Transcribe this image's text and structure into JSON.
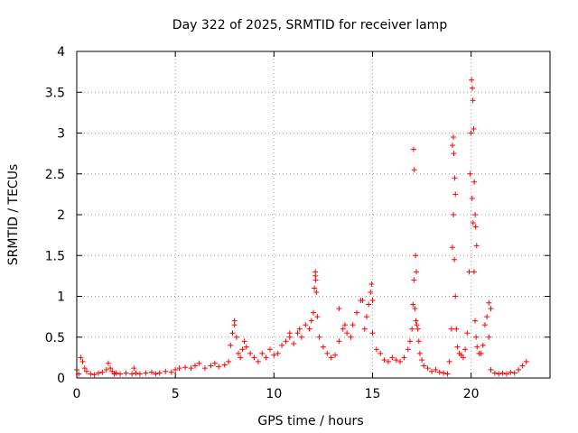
{
  "chart_data": {
    "type": "scatter",
    "title": "Day 322 of 2025, SRMTID for receiver lamp",
    "xlabel": "GPS time / hours",
    "ylabel": "SRMTID / TECUs",
    "xlim": [
      0,
      24
    ],
    "ylim": [
      0,
      4
    ],
    "xticks": [
      0,
      5,
      10,
      15,
      20
    ],
    "yticks": [
      0,
      0.5,
      1,
      1.5,
      2,
      2.5,
      3,
      3.5,
      4
    ],
    "ytick_labels": [
      "0",
      "0.5",
      "1",
      "1.5",
      "2",
      "2.5",
      "3",
      "3.5",
      "4"
    ],
    "grid": true,
    "marker": "+",
    "color": "#ff0000",
    "series": [
      {
        "name": "SRMTID",
        "x": [
          0.0,
          0.1,
          0.2,
          0.3,
          0.4,
          0.5,
          0.7,
          0.9,
          1.1,
          1.3,
          1.5,
          1.6,
          1.7,
          1.8,
          1.9,
          2.0,
          2.2,
          2.5,
          2.8,
          2.9,
          3.0,
          3.2,
          3.5,
          3.8,
          4.0,
          4.2,
          4.5,
          4.8,
          5.0,
          5.2,
          5.5,
          5.8,
          6.0,
          6.2,
          6.5,
          6.8,
          7.0,
          7.2,
          7.5,
          7.7,
          7.8,
          7.9,
          8.0,
          8.1,
          8.2,
          8.3,
          8.4,
          8.5,
          8.6,
          8.8,
          9.0,
          9.2,
          9.4,
          9.6,
          9.8,
          10.0,
          10.2,
          10.4,
          10.6,
          10.8,
          11.0,
          11.2,
          11.4,
          11.6,
          11.8,
          11.9,
          12.0,
          12.05,
          12.1,
          12.15,
          12.2,
          12.3,
          12.5,
          12.7,
          12.9,
          13.1,
          13.3,
          13.5,
          13.7,
          13.9,
          14.0,
          14.2,
          14.4,
          14.6,
          14.7,
          14.8,
          14.9,
          15.0,
          15.2,
          15.4,
          15.6,
          15.8,
          16.0,
          16.2,
          16.4,
          16.6,
          16.8,
          16.9,
          17.0,
          17.05,
          17.1,
          17.15,
          17.2,
          17.25,
          17.3,
          17.35,
          17.4,
          17.5,
          17.6,
          17.8,
          18.0,
          18.2,
          18.4,
          18.6,
          18.8,
          18.9,
          19.0,
          19.05,
          19.1,
          19.15,
          19.2,
          19.25,
          19.3,
          19.4,
          19.5,
          19.6,
          19.7,
          19.8,
          19.9,
          19.95,
          20.0,
          20.05,
          20.1,
          20.15,
          20.2,
          20.25,
          20.3,
          20.4,
          20.5,
          20.6,
          20.7,
          20.8,
          20.9,
          21.0,
          21.2,
          21.4,
          21.6,
          21.8,
          22.0,
          22.2,
          22.4,
          22.6,
          22.8,
          12.1,
          12.12,
          14.95,
          15.0,
          17.08,
          17.12,
          17.18,
          17.22,
          19.05,
          19.1,
          19.12,
          19.17,
          19.2,
          20.02,
          20.06,
          20.09,
          20.13,
          20.16,
          20.2,
          20.23,
          20.28,
          8.0,
          10.8,
          11.3,
          13.3,
          13.6,
          14.5,
          20.9,
          21.0
        ],
        "y": [
          0.1,
          0.05,
          0.25,
          0.2,
          0.12,
          0.08,
          0.05,
          0.04,
          0.06,
          0.07,
          0.1,
          0.18,
          0.12,
          0.08,
          0.05,
          0.06,
          0.05,
          0.06,
          0.05,
          0.12,
          0.06,
          0.05,
          0.06,
          0.07,
          0.05,
          0.06,
          0.08,
          0.07,
          0.1,
          0.12,
          0.13,
          0.12,
          0.15,
          0.18,
          0.12,
          0.15,
          0.18,
          0.14,
          0.16,
          0.2,
          0.4,
          0.55,
          0.7,
          0.5,
          0.3,
          0.25,
          0.35,
          0.45,
          0.38,
          0.3,
          0.25,
          0.2,
          0.3,
          0.25,
          0.35,
          0.28,
          0.3,
          0.4,
          0.45,
          0.5,
          0.42,
          0.55,
          0.5,
          0.65,
          0.6,
          0.7,
          0.8,
          1.1,
          1.3,
          1.05,
          0.75,
          0.5,
          0.38,
          0.3,
          0.25,
          0.28,
          0.45,
          0.6,
          0.55,
          0.5,
          0.65,
          0.8,
          0.95,
          0.6,
          0.75,
          0.9,
          1.05,
          0.55,
          0.35,
          0.3,
          0.22,
          0.2,
          0.25,
          0.22,
          0.2,
          0.25,
          0.35,
          0.45,
          0.6,
          0.9,
          1.2,
          0.85,
          0.7,
          0.65,
          0.6,
          0.45,
          0.3,
          0.22,
          0.15,
          0.12,
          0.08,
          0.1,
          0.07,
          0.06,
          0.05,
          0.2,
          0.6,
          1.6,
          2.0,
          1.45,
          1.0,
          0.6,
          0.38,
          0.3,
          0.28,
          0.25,
          0.35,
          0.55,
          1.3,
          2.5,
          3.0,
          2.2,
          1.9,
          1.3,
          0.7,
          0.5,
          0.38,
          0.3,
          0.3,
          0.4,
          0.65,
          0.75,
          0.5,
          0.1,
          0.06,
          0.05,
          0.06,
          0.05,
          0.07,
          0.06,
          0.1,
          0.15,
          0.2,
          1.25,
          1.2,
          1.15,
          0.95,
          2.8,
          2.55,
          1.5,
          1.3,
          2.85,
          2.95,
          2.75,
          2.45,
          2.25,
          3.65,
          3.55,
          3.4,
          3.05,
          2.4,
          2.0,
          1.85,
          1.62,
          0.65,
          0.55,
          0.6,
          0.85,
          0.65,
          0.95,
          0.92,
          0.85
        ]
      }
    ]
  }
}
